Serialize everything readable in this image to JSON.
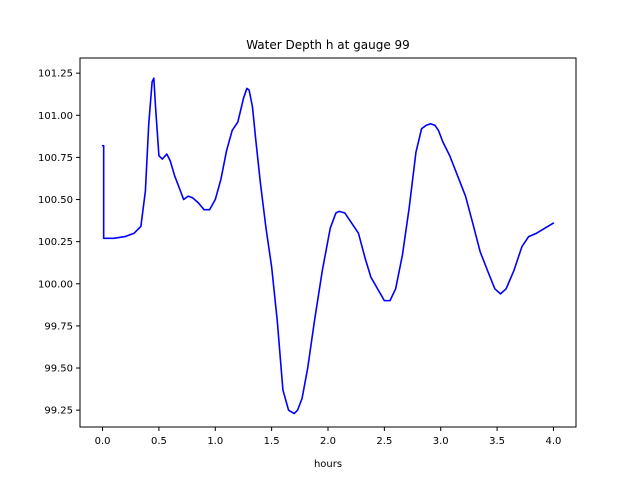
{
  "chart_data": {
    "type": "line",
    "title": "Water Depth h at gauge 99",
    "xlabel": "hours",
    "ylabel": "",
    "xlim": [
      -0.2,
      4.2
    ],
    "ylim": [
      99.15,
      101.34
    ],
    "xticks": [
      0.0,
      0.5,
      1.0,
      1.5,
      2.0,
      2.5,
      3.0,
      3.5,
      4.0
    ],
    "xtick_labels": [
      "0.0",
      "0.5",
      "1.0",
      "1.5",
      "2.0",
      "2.5",
      "3.0",
      "3.5",
      "4.0"
    ],
    "yticks": [
      99.25,
      99.5,
      99.75,
      100.0,
      100.25,
      100.5,
      100.75,
      101.0,
      101.25
    ],
    "ytick_labels": [
      "99.25",
      "99.50",
      "99.75",
      "100.00",
      "100.25",
      "100.50",
      "100.75",
      "101.00",
      "101.25"
    ],
    "grid": false,
    "legend": "none",
    "series": [
      {
        "color": "#0000ff",
        "x": [
          0.0,
          0.01,
          0.01,
          0.1,
          0.2,
          0.28,
          0.34,
          0.38,
          0.41,
          0.44,
          0.455,
          0.47,
          0.5,
          0.53,
          0.57,
          0.6,
          0.64,
          0.68,
          0.72,
          0.76,
          0.8,
          0.85,
          0.9,
          0.95,
          1.0,
          1.05,
          1.1,
          1.15,
          1.2,
          1.25,
          1.28,
          1.3,
          1.33,
          1.36,
          1.4,
          1.45,
          1.5,
          1.55,
          1.6,
          1.65,
          1.7,
          1.73,
          1.77,
          1.82,
          1.88,
          1.95,
          2.02,
          2.07,
          2.1,
          2.15,
          2.2,
          2.27,
          2.33,
          2.38,
          2.44,
          2.5,
          2.55,
          2.6,
          2.66,
          2.72,
          2.78,
          2.83,
          2.87,
          2.91,
          2.95,
          2.98,
          3.02,
          3.08,
          3.15,
          3.22,
          3.28,
          3.35,
          3.42,
          3.48,
          3.53,
          3.58,
          3.65,
          3.72,
          3.78,
          3.85,
          3.9,
          3.95,
          4.0
        ],
        "y": [
          100.82,
          100.82,
          100.27,
          100.27,
          100.28,
          100.3,
          100.34,
          100.55,
          100.95,
          101.2,
          101.22,
          101.05,
          100.76,
          100.74,
          100.77,
          100.73,
          100.64,
          100.57,
          100.5,
          100.52,
          100.51,
          100.48,
          100.44,
          100.44,
          100.5,
          100.62,
          100.79,
          100.91,
          100.96,
          101.1,
          101.16,
          101.15,
          101.05,
          100.85,
          100.6,
          100.33,
          100.1,
          99.78,
          99.37,
          99.25,
          99.23,
          99.25,
          99.32,
          99.5,
          99.78,
          100.08,
          100.33,
          100.42,
          100.43,
          100.42,
          100.37,
          100.3,
          100.15,
          100.04,
          99.97,
          99.9,
          99.9,
          99.97,
          100.17,
          100.45,
          100.78,
          100.92,
          100.94,
          100.95,
          100.94,
          100.91,
          100.84,
          100.76,
          100.64,
          100.52,
          100.37,
          100.19,
          100.07,
          99.97,
          99.94,
          99.97,
          100.08,
          100.22,
          100.28,
          100.3,
          100.32,
          100.34,
          100.36
        ]
      }
    ]
  }
}
